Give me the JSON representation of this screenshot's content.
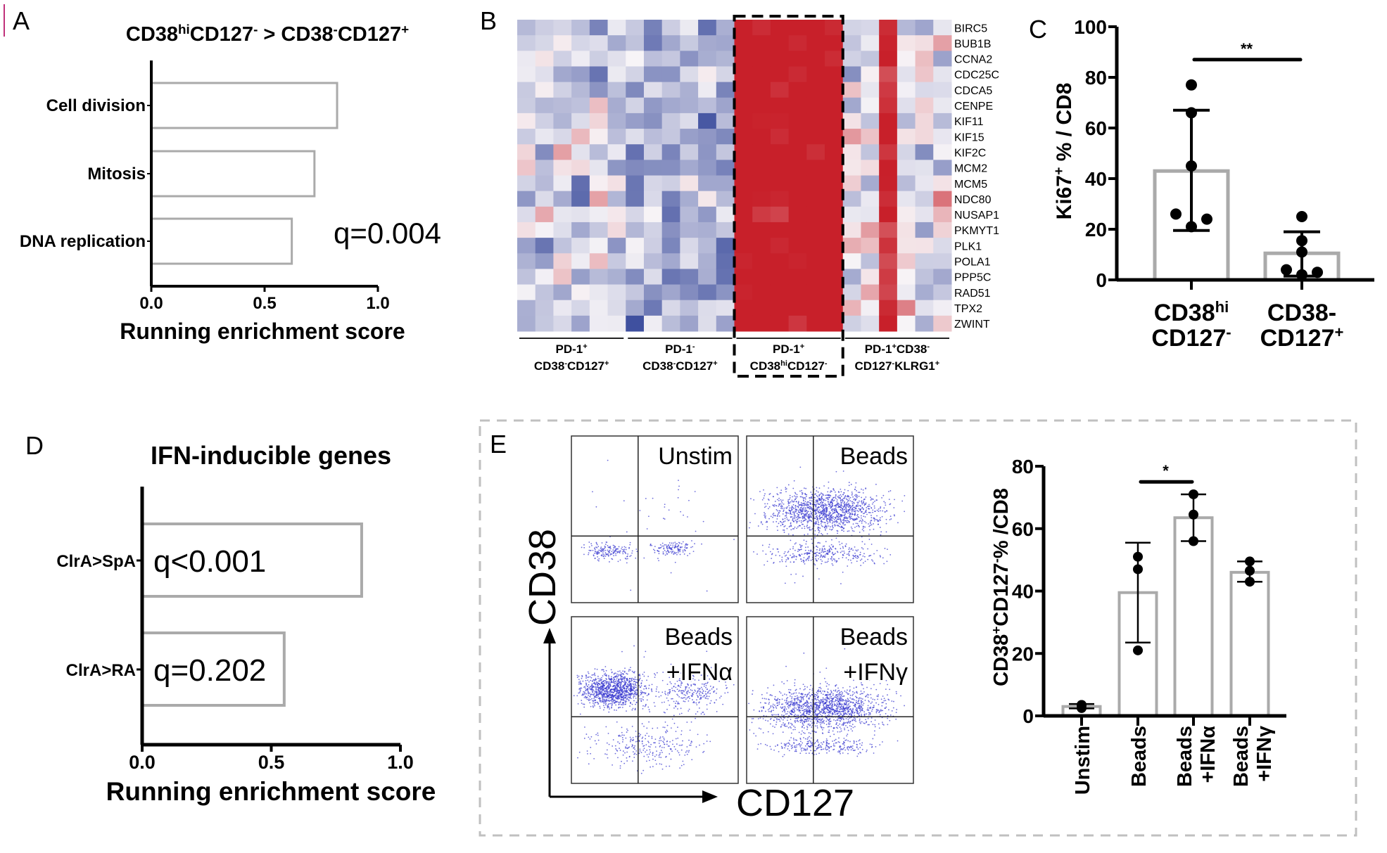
{
  "figure": {
    "panel_letters": {
      "A": "A",
      "B": "B",
      "C": "C",
      "D": "D",
      "E": "E"
    },
    "colors": {
      "bar_outline": "#aaaaaa",
      "heat_low": "#3a4b9c",
      "heat_mid": "#f7f4f7",
      "heat_high": "#c8202a",
      "flow_dots": "#3b3bd0",
      "marker": "#c0307a",
      "dashed_box": "#c0c0c0"
    }
  },
  "chart_data": [
    {
      "panel": "A",
      "type": "bar",
      "orientation": "horizontal",
      "title": [
        {
          "t": "CD38"
        },
        {
          "t": "hi",
          "sup": true
        },
        {
          "t": "CD127"
        },
        {
          "t": "-",
          "sup": true
        },
        {
          "t": " > CD38"
        },
        {
          "t": "-",
          "sup": true
        },
        {
          "t": "CD127"
        },
        {
          "t": "+",
          "sup": true
        }
      ],
      "categories": [
        "Cell division",
        "Mitosis",
        "DNA replication"
      ],
      "values": [
        0.82,
        0.72,
        0.62
      ],
      "xlim": [
        0,
        1
      ],
      "xticks": [
        "0.0",
        "0.5",
        "1.0"
      ],
      "xlabel": "Running enrichment score",
      "annotation": "q=0.004"
    },
    {
      "panel": "B",
      "type": "heatmap",
      "genes": [
        "BIRC5",
        "BUB1B",
        "CCNA2",
        "CDC25C",
        "CDCA5",
        "CENPE",
        "KIF11",
        "KIF15",
        "KIF2C",
        "MCM2",
        "MCM5",
        "NDC80",
        "NUSAP1",
        "PKMYT1",
        "PLK1",
        "POLA1",
        "PPP5C",
        "RAD51",
        "TPX2",
        "ZWINT"
      ],
      "groups": [
        {
          "line1": [
            {
              "t": "PD-1"
            },
            {
              "t": "+",
              "sup": true
            }
          ],
          "line2": [
            {
              "t": "CD38"
            },
            {
              "t": "-",
              "sup": true
            },
            {
              "t": "CD127"
            },
            {
              "t": "+",
              "sup": true
            }
          ],
          "columns": 6,
          "mean_expression": "low-mixed"
        },
        {
          "line1": [
            {
              "t": "PD-1"
            },
            {
              "t": "-",
              "sup": true
            }
          ],
          "line2": [
            {
              "t": "CD38"
            },
            {
              "t": "-",
              "sup": true
            },
            {
              "t": "CD127"
            },
            {
              "t": "+",
              "sup": true
            }
          ],
          "columns": 6,
          "mean_expression": "low"
        },
        {
          "line1": [
            {
              "t": "PD-1"
            },
            {
              "t": "+",
              "sup": true
            }
          ],
          "line2": [
            {
              "t": "CD38"
            },
            {
              "t": "hi",
              "sup": true
            },
            {
              "t": "CD127"
            },
            {
              "t": "-",
              "sup": true
            }
          ],
          "columns": 6,
          "mean_expression": "high",
          "highlighted": true
        },
        {
          "line1": [
            {
              "t": "PD-1"
            },
            {
              "t": "+",
              "sup": true
            },
            {
              "t": "CD38"
            },
            {
              "t": "-",
              "sup": true
            }
          ],
          "line2": [
            {
              "t": "CD127"
            },
            {
              "t": "-",
              "sup": true
            },
            {
              "t": "KLRG1"
            },
            {
              "t": "+",
              "sup": true
            }
          ],
          "columns": 6,
          "mean_expression": "mixed"
        }
      ]
    },
    {
      "panel": "C",
      "type": "bar",
      "categories": [
        {
          "line1": [
            {
              "t": "CD38"
            },
            {
              "t": "hi",
              "sup": true
            }
          ],
          "line2": [
            {
              "t": "CD127"
            },
            {
              "t": "-",
              "sup": true
            }
          ]
        },
        {
          "line1": [
            {
              "t": "CD38-"
            }
          ],
          "line2": [
            {
              "t": "CD127"
            },
            {
              "t": "+",
              "sup": true
            }
          ]
        }
      ],
      "means": [
        43,
        10.5
      ],
      "error_upper": [
        67,
        19
      ],
      "error_lower": [
        19.5,
        1.5
      ],
      "points": [
        [
          77,
          66,
          45,
          26,
          21,
          24
        ],
        [
          25,
          15.5,
          11,
          4,
          2,
          3
        ]
      ],
      "ylim": [
        0,
        100
      ],
      "yticks": [
        "0",
        "20",
        "40",
        "60",
        "80",
        "100"
      ],
      "ylabel": [
        {
          "t": "Ki67"
        },
        {
          "t": "+",
          "sup": true
        },
        {
          "t": " %  / CD8"
        }
      ],
      "significance": {
        "from": 0,
        "to": 1,
        "label": "**",
        "y": 87
      }
    },
    {
      "panel": "D",
      "type": "bar",
      "orientation": "horizontal",
      "title": "IFN-inducible genes",
      "categories": [
        "ClrA>SpA",
        "ClrA>RA"
      ],
      "values": [
        0.85,
        0.55
      ],
      "annotations": [
        "q<0.001",
        "q=0.202"
      ],
      "xlim": [
        0,
        1
      ],
      "xticks": [
        "0.0",
        "0.5",
        "1.0"
      ],
      "xlabel": "Running enrichment score"
    },
    {
      "panel": "E-flow",
      "type": "scatter",
      "xlabel": "CD127",
      "ylabel": "CD38",
      "plots": [
        {
          "label": [
            "Unstim"
          ]
        },
        {
          "label": [
            "Beads"
          ]
        },
        {
          "label": [
            "Beads",
            "+IFNα"
          ]
        },
        {
          "label": [
            "Beads",
            "+IFNγ"
          ]
        }
      ]
    },
    {
      "panel": "E-bar",
      "type": "bar",
      "categories": [
        [
          "Unstim"
        ],
        [
          "Beads"
        ],
        [
          "Beads",
          "+IFNα"
        ],
        [
          "Beads",
          "+IFNγ"
        ]
      ],
      "means": [
        3,
        39.5,
        63.5,
        46
      ],
      "error_upper": [
        3.8,
        55.5,
        71,
        49.5
      ],
      "error_lower": [
        2.4,
        23.5,
        56,
        43
      ],
      "points": [
        [
          2.5,
          3.5,
          3.5
        ],
        [
          51,
          47,
          21
        ],
        [
          71,
          64.5,
          56
        ],
        [
          49.5,
          46.5,
          43
        ]
      ],
      "ylim": [
        0,
        80
      ],
      "yticks": [
        "0",
        "20",
        "40",
        "60",
        "80"
      ],
      "ylabel": [
        {
          "t": "CD38"
        },
        {
          "t": "+",
          "sup": true
        },
        {
          "t": "CD127"
        },
        {
          "t": "-",
          "sup": true
        },
        {
          "t": "% /CD8"
        }
      ],
      "significance": {
        "from": 1,
        "to": 2,
        "label": "*",
        "y": 75
      }
    }
  ]
}
